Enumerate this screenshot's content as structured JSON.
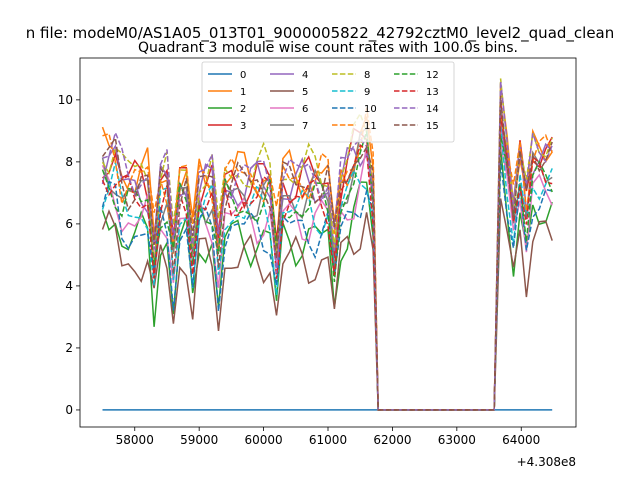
{
  "figure": {
    "suptitle": "n file: modeM0/AS1A05_013T01_9000005822_42792cztM0_level2_quad_clean",
    "x_offset_label": "+4.308e8"
  },
  "chart_data": {
    "type": "line",
    "title": "Quadrant 3 module wise count rates with 100.0s bins.",
    "xlabel": "",
    "ylabel": "",
    "xlim": [
      57150,
      64850
    ],
    "ylim": [
      -0.55,
      11.35
    ],
    "xticks": [
      58000,
      59000,
      60000,
      61000,
      62000,
      63000,
      64000
    ],
    "yticks": [
      0,
      2,
      4,
      6,
      8,
      10
    ],
    "legend_position": "upper center",
    "legend_columns": 4,
    "gap": {
      "from": 61780,
      "to": 63580,
      "value": 0
    },
    "segment1": {
      "start": 57500,
      "step": 100,
      "count": 43
    },
    "segment2": {
      "start": 63680,
      "step": 100,
      "count": 9
    },
    "series": [
      {
        "name": "0",
        "color": "#1f77b4",
        "dash": "solid",
        "base": 0
      },
      {
        "name": "1",
        "color": "#ff7f0e",
        "dash": "solid",
        "base": 7.6
      },
      {
        "name": "2",
        "color": "#2ca02c",
        "dash": "solid",
        "base": 5.5
      },
      {
        "name": "3",
        "color": "#d62728",
        "dash": "solid",
        "base": 7.4
      },
      {
        "name": "4",
        "color": "#9467bd",
        "dash": "solid",
        "base": 7.2
      },
      {
        "name": "5",
        "color": "#8c564b",
        "dash": "solid",
        "base": 4.8
      },
      {
        "name": "6",
        "color": "#e377c2",
        "dash": "solid",
        "base": 6.2
      },
      {
        "name": "7",
        "color": "#7f7f7f",
        "dash": "solid",
        "base": 6.9
      },
      {
        "name": "8",
        "color": "#bcbd22",
        "dash": "dashed",
        "base": 7.7
      },
      {
        "name": "9",
        "color": "#17becf",
        "dash": "dashed",
        "base": 6.4
      },
      {
        "name": "10",
        "color": "#1f77b4",
        "dash": "dashed",
        "base": 5.8
      },
      {
        "name": "11",
        "color": "#ff7f0e",
        "dash": "dashed",
        "base": 7.5
      },
      {
        "name": "12",
        "color": "#2ca02c",
        "dash": "dashed",
        "base": 6.6
      },
      {
        "name": "13",
        "color": "#d62728",
        "dash": "dashed",
        "base": 6.8
      },
      {
        "name": "14",
        "color": "#9467bd",
        "dash": "dashed",
        "base": 7.6
      },
      {
        "name": "15",
        "color": "#8c564b",
        "dash": "dashed",
        "base": 7.3
      }
    ]
  }
}
